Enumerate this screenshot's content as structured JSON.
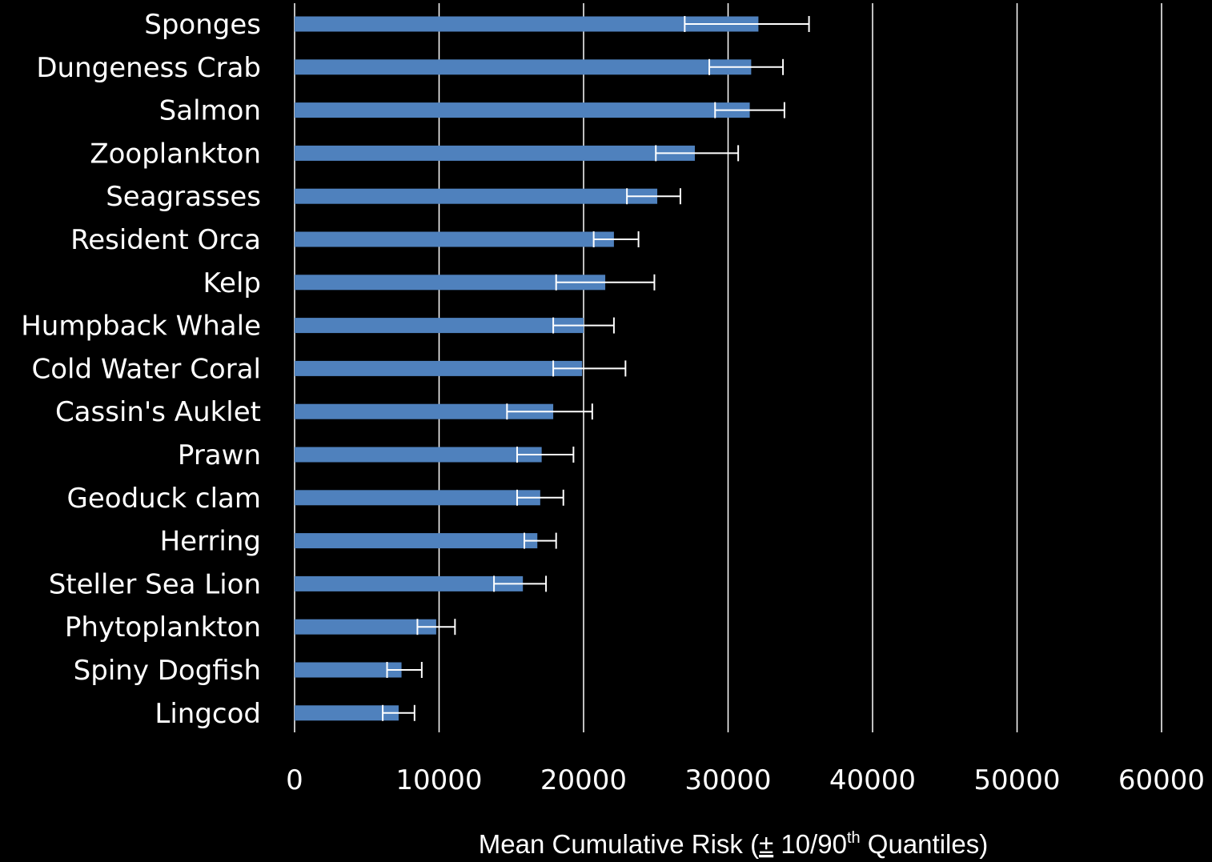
{
  "chart_data": {
    "type": "bar",
    "orientation": "horizontal",
    "categories": [
      "Sponges",
      "Dungeness Crab",
      "Salmon",
      "Zooplankton",
      "Seagrasses",
      "Resident Orca",
      "Kelp",
      "Humpback Whale",
      "Cold Water Coral",
      "Cassin's Auklet",
      "Prawn",
      "Geoduck clam",
      "Herring",
      "Steller Sea Lion",
      "Phytoplankton",
      "Spiny Dogfish",
      "Lingcod"
    ],
    "values": [
      32100,
      31600,
      31500,
      27700,
      25100,
      22100,
      21500,
      20000,
      19900,
      17900,
      17100,
      17000,
      16800,
      15800,
      9800,
      7400,
      7200
    ],
    "error_low": [
      27000,
      28700,
      29100,
      25000,
      23000,
      20700,
      18100,
      17900,
      17900,
      14700,
      15400,
      15400,
      15900,
      13800,
      8500,
      6400,
      6100
    ],
    "error_high": [
      35600,
      33800,
      33900,
      30700,
      26700,
      23800,
      24900,
      22100,
      22900,
      20600,
      19300,
      18600,
      18100,
      17400,
      11100,
      8800,
      8300
    ],
    "xlabel": {
      "before": "Mean Cumulative Risk (",
      "pm": "±",
      "mid": " 10/90",
      "sup": "th",
      "after": " Quantiles)"
    },
    "ylabel": "",
    "xlim": [
      0,
      60000
    ],
    "xticks": [
      "0",
      "10000",
      "20000",
      "30000",
      "40000",
      "50000",
      "60000"
    ],
    "grid": true,
    "colors": {
      "bar": "#4f81bd",
      "background": "#000000",
      "text": "#ffffff",
      "grid": "#ffffff",
      "error_bar": "#ffffff"
    }
  }
}
